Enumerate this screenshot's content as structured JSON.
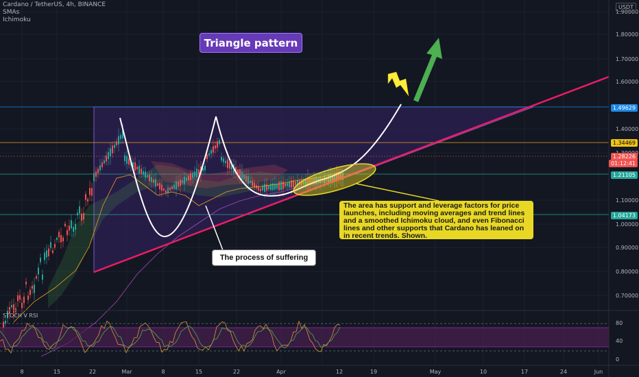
{
  "legend": {
    "symbol_line": "Cardano / TetherUS, 4h, BINANCE",
    "indicator_1": "SMAs",
    "indicator_2": "Ichimoku"
  },
  "currency_badge": "USDT",
  "annotations": {
    "title": "Triangle pattern",
    "note": "The area  has support and leverage factors for price launches, including moving averages and trend lines and a smoothed Ichimoku cloud, and  even Fibonacci lines and other supports that Cardano has leaned on in recent trends. Shown.",
    "suffering": "The process of suffering"
  },
  "price_axis": {
    "ticks": [
      "1.90000",
      "1.80000",
      "1.70000",
      "1.60000",
      "1.40000",
      "1.30000",
      "1.10000",
      "1.00000",
      "0.90000",
      "0.80000",
      "0.70000"
    ],
    "tags": [
      {
        "value": "1.49629",
        "bg": "#1e88e5",
        "fg": "#ffffff"
      },
      {
        "value": "1.34469",
        "bg": "#f0c419",
        "fg": "#000000"
      },
      {
        "value": "1.28226",
        "bg": "#ef5350",
        "fg": "#ffffff"
      },
      {
        "value": "01:12:41",
        "bg": "#ef5350",
        "fg": "#ffffff"
      },
      {
        "value": "1.21105",
        "bg": "#26a69a",
        "fg": "#ffffff"
      },
      {
        "value": "1.04173",
        "bg": "#26a69a",
        "fg": "#ffffff"
      }
    ]
  },
  "time_axis": {
    "labels": [
      "8",
      "15",
      "22",
      "Mar",
      "8",
      "15",
      "22",
      "Apr",
      "12",
      "19",
      "May",
      "10",
      "17",
      "24",
      "Jun"
    ]
  },
  "stoch": {
    "label": "STOCH V RSI",
    "ticks": [
      "80",
      "40",
      "0"
    ]
  },
  "colors": {
    "background": "#131722",
    "triangle_fill": "#2a1f4d",
    "trendline": "#e91e63",
    "resistance": "#5c6bc0",
    "ellipse": "#e8d825",
    "arrow_green": "#4caf50",
    "bolt": "#ffeb3b"
  }
}
